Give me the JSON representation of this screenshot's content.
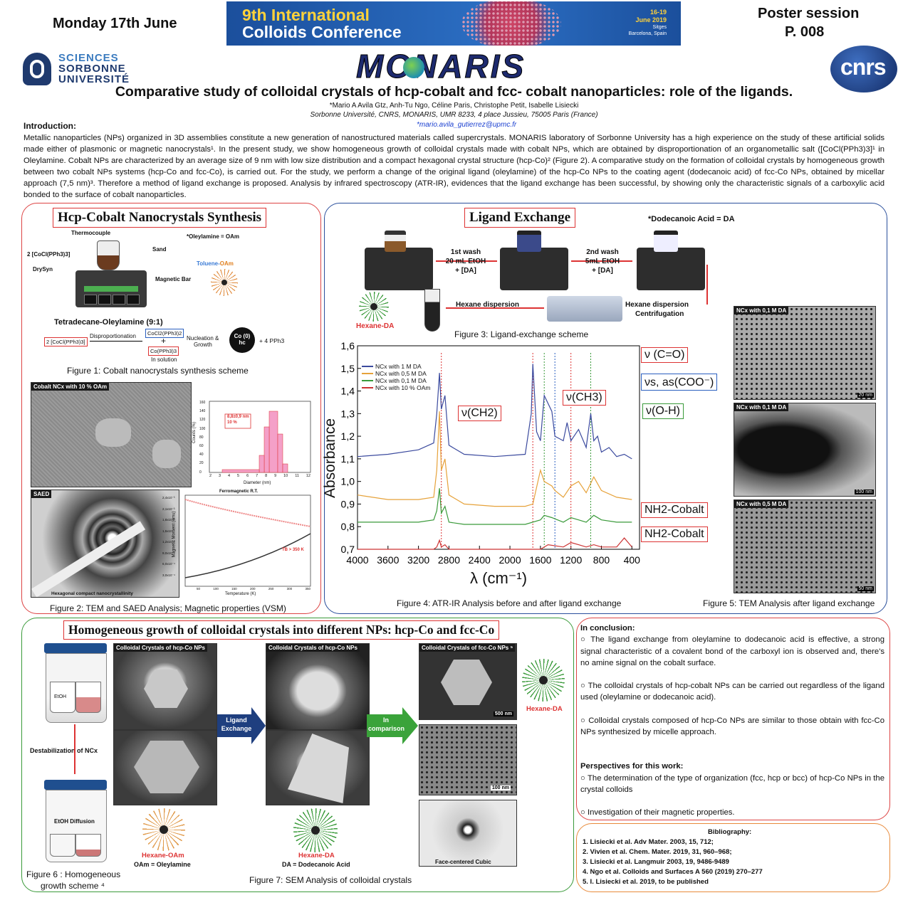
{
  "header": {
    "date": "Monday 17th June",
    "banner_line1": "9th International",
    "banner_line2": "Colloids Conference",
    "banner_dates": "16-19",
    "banner_month": "June 2019",
    "banner_place1": "Sitges",
    "banner_place2": "Barcelona, Spain",
    "session": "Poster session",
    "poster_number": "P. 008",
    "logo_sorbonne": [
      "SCIENCES",
      "SORBONNE",
      "UNIVERSITÉ"
    ],
    "logo_monaris": "MONARIS",
    "logo_cnrs": "cnrs"
  },
  "title": "Comparative study of colloidal crystals of hcp-cobalt and fcc- cobalt nanoparticles: role of the ligands.",
  "authors": "*Mario A Avila Gtz, Anh-Tu Ngo, Céline Paris, Christophe Petit, Isabelle Lisiecki",
  "affiliation": "Sorbonne Université, CNRS, MONARIS, UMR 8233, 4 place Jussieu, 75005 Paris (France)",
  "email": "*mario.avila_gutierrez@upmc.fr",
  "introduction": {
    "heading": "Introduction:",
    "text": "Metallic nanoparticles (NPs) organized in 3D assemblies constitute a new generation of nanostructured materials called supercrystals. MONARIS laboratory of Sorbonne University has a high experience on the study of these artificial solids made either of plasmonic or magnetic nanocrystals¹. In the present study, we show homogeneous growth of colloidal crystals made with cobalt NPs, which are obtained by disproportionation of an organometallic salt ([CoCl(PPh3)3]¹ in Oleylamine. Cobalt NPs are characterized by an average size of 9 nm with low size distribution and a compact hexagonal crystal structure (hcp-Co)² (Figure 2). A comparative study on the formation of colloidal crystals by homogeneous growth between two cobalt NPs systems (hcp-Co and fcc-Co), is carried out. For the study, we perform a change of the original ligand (oleylamine) of the hcp-Co NPs to the coating agent (dodecanoic acid) of fcc-Co NPs, obtained by micellar approach (7,5 nm)³. Therefore a method of ligand exchange is proposed. Analysis by infrared spectroscopy (ATR-IR), evidences that the ligand exchange has been successful, by showing only the characteristic signals of a carboxylic acid bonded to the surface of cobalt nanoparticles."
  },
  "synthesis": {
    "title": "Hcp-Cobalt Nanocrystals Synthesis",
    "labels": {
      "thermocouple": "Thermocouple",
      "oam_def": "*Oleylamine = OAm",
      "precursor": "2 [CoCl(PPh3)3]",
      "sand": "Sand",
      "drysyn": "DrySyn",
      "toluene": "Toluene-",
      "toluene_oam": "OAm",
      "magnetic_bar": "Magnetic Bar",
      "solvent": "Tetradecane-Oleylamine (9:1)",
      "reactant": "2 [CoCl(PPh3)3]",
      "disprop": "Disproportionation",
      "cocl": "CoCl2(PPh3)2",
      "plus": "+",
      "co_pph": "Co(PPh3)3",
      "in_solution": "In solution",
      "nucleation": "Nucleation &",
      "growth": "Growth",
      "co0": "Co (0)",
      "hc": "hc",
      "pph3": "+ 4 PPh3"
    },
    "fig1_caption": "Figure 1: Cobalt nanocrystals synthesis scheme",
    "tem_label": "Cobalt NCx with 10 % OAm",
    "hist": {
      "annot1": "8,8±0,9 nm",
      "annot2": "10 %",
      "xlabel": "Diameter (nm)",
      "ylabel": "Counts (%)",
      "yticks": [
        "160",
        "140",
        "120",
        "100",
        "80",
        "60",
        "40",
        "20",
        "0"
      ],
      "xticks": [
        "2",
        "3",
        "4",
        "5",
        "6",
        "7",
        "8",
        "9",
        "10",
        "11",
        "12"
      ]
    },
    "saed_label": "SAED",
    "saed_caption": "Hexagonal compact nanocrystallinity",
    "vsm": {
      "title": "Ferromagnetic R.T.",
      "ylabel": "Magnetic Moment (emu)",
      "xlabel": "Temperature (K)",
      "annot": "TB > 350 K",
      "yticks": [
        "2,4x10⁻³",
        "2,1x10⁻³",
        "1,8x10⁻³",
        "1,5x10⁻³",
        "1,2x10⁻³",
        "9,0x10⁻⁴",
        "6,0x10⁻⁴",
        "3,0x10⁻⁴"
      ],
      "xticks": [
        "50",
        "100",
        "150",
        "200",
        "250",
        "300",
        "350"
      ]
    },
    "fig2_caption": "Figure 2: TEM and SAED Analysis; Magnetic properties (VSM)"
  },
  "ligand": {
    "title": "Ligand Exchange",
    "da_def": "*Dodecanoic Acid = DA",
    "wash1": [
      "1st wash",
      "20 mL EtOH",
      "+ [DA]"
    ],
    "wash2": [
      "2nd wash",
      "5mL EtOH",
      "+ [DA]"
    ],
    "hexane_disp": "Hexane dispersion",
    "hexane_disp2": "Hexane dispersion",
    "centrifugation": "Centrifugation",
    "hexane_da": "Hexane-DA",
    "fig3_caption": "Figure 3: Ligand-exchange scheme",
    "fig4_caption": "Figure 4: ATR-IR Analysis before and after ligand exchange",
    "fig5_caption": "Figure 5: TEM Analysis after ligand exchange",
    "tem_labels": [
      "NCx with 0,1 M DA",
      "NCx with 0,1 M DA",
      "NCx with 0,5 M DA"
    ],
    "scalebars": [
      "20 nm",
      "100 nm",
      "50 nm"
    ],
    "ir_labels": {
      "ch2": "ν(CH2)",
      "ch3": "ν(CH3)",
      "co": "ν (C=O)",
      "coo": "νs, as(COO⁻)",
      "oh": "ν(O-H)",
      "nh2a": "NH2-Cobalt",
      "nh2b": "NH2-Cobalt"
    }
  },
  "chart_data": {
    "type": "line",
    "title": "",
    "xlabel": "λ (cm⁻¹)",
    "ylabel": "Absorbance",
    "xlim": [
      4000,
      300
    ],
    "ylim": [
      0.7,
      1.6
    ],
    "xticks": [
      4000,
      3600,
      3200,
      2800,
      2400,
      2000,
      1600,
      1200,
      800,
      400
    ],
    "yticks": [
      "0,7",
      "0,8",
      "0,9",
      "1,0",
      "1,1",
      "1,2",
      "1,3",
      "1,4",
      "1,5",
      "1,6"
    ],
    "legend_position": "top-left",
    "series": [
      {
        "name": "NCx with 1 M DA",
        "color": "#3b4a9e",
        "x": [
          4000,
          3600,
          3200,
          3000,
          2960,
          2925,
          2900,
          2853,
          2800,
          2600,
          2200,
          1800,
          1720,
          1700,
          1650,
          1600,
          1550,
          1450,
          1410,
          1300,
          1250,
          1200,
          1100,
          1000,
          940,
          900,
          850,
          800,
          700,
          600,
          500,
          400
        ],
        "y": [
          1.11,
          1.12,
          1.14,
          1.17,
          1.3,
          1.48,
          1.32,
          1.38,
          1.16,
          1.12,
          1.11,
          1.12,
          1.3,
          1.52,
          1.22,
          1.18,
          1.38,
          1.31,
          1.2,
          1.18,
          1.26,
          1.18,
          1.23,
          1.15,
          1.3,
          1.18,
          1.2,
          1.13,
          1.15,
          1.11,
          1.12,
          1.1
        ]
      },
      {
        "name": "NCx with 0,5 M DA",
        "color": "#e6a23a",
        "x": [
          4000,
          3600,
          3200,
          3000,
          2960,
          2925,
          2900,
          2853,
          2800,
          2600,
          2200,
          1800,
          1700,
          1600,
          1550,
          1450,
          1410,
          1300,
          1200,
          1100,
          1000,
          900,
          800,
          600,
          400
        ],
        "y": [
          0.94,
          0.92,
          0.92,
          0.93,
          1.05,
          1.31,
          1.05,
          1.1,
          0.94,
          0.9,
          0.89,
          0.89,
          0.9,
          1.05,
          1.0,
          0.98,
          0.96,
          0.93,
          0.98,
          1.0,
          0.95,
          1.02,
          0.96,
          0.93,
          0.92
        ]
      },
      {
        "name": "NCx with 0,1 M DA",
        "color": "#3a9a3a",
        "x": [
          4000,
          3600,
          3200,
          3000,
          2960,
          2925,
          2900,
          2853,
          2800,
          2600,
          2200,
          1800,
          1600,
          1550,
          1450,
          1300,
          1200,
          1100,
          1000,
          900,
          800,
          600,
          400
        ],
        "y": [
          0.82,
          0.82,
          0.82,
          0.83,
          0.87,
          0.97,
          0.86,
          0.89,
          0.82,
          0.81,
          0.81,
          0.81,
          0.83,
          0.85,
          0.84,
          0.82,
          0.84,
          0.83,
          0.82,
          0.85,
          0.83,
          0.82,
          0.82
        ]
      },
      {
        "name": "NCx with 10 % OAm",
        "color": "#cc3333",
        "x": [
          4000,
          3600,
          3200,
          3000,
          2960,
          2925,
          2900,
          2853,
          2800,
          2600,
          2200,
          1800,
          1600,
          1500,
          1300,
          1200,
          1100,
          1000,
          900,
          800,
          600,
          500,
          400
        ],
        "y": [
          0.7,
          0.7,
          0.7,
          0.7,
          0.71,
          0.74,
          0.71,
          0.72,
          0.7,
          0.7,
          0.7,
          0.7,
          0.7,
          0.72,
          0.71,
          0.73,
          0.72,
          0.71,
          0.72,
          0.71,
          0.71,
          0.75,
          0.71
        ]
      }
    ]
  },
  "growth": {
    "title": "Homogeneous growth of colloidal crystals into different NPs: hcp-Co and fcc-Co",
    "etoh": "EtOH",
    "destab": "Destabilization of NCx",
    "diffusion": "EtOH Diffusion",
    "fig6_caption_1": "Figure 6 : Homogeneous",
    "fig6_caption_2": "growth scheme ⁴",
    "sem_headers": [
      "Colloidal Crystals of hcp-Co NPs",
      "Colloidal Crystals of  hcp-Co NPs",
      "Colloidal Crystals of fcc-Co NPs ⁵"
    ],
    "arrow1": [
      "Ligand",
      "Exchange"
    ],
    "arrow2": [
      "In",
      "comparison"
    ],
    "scale_500": "500 nm",
    "scale_100": "100 nm",
    "fcc": "Face-centered Cubic",
    "hexane_oam": "Hexane-OAm",
    "oam_def": "OAm = Oleylamine",
    "hexane_da": "Hexane-DA",
    "da_def": "DA = Dodecanoic Acid",
    "hexane_da_right": "Hexane-DA",
    "fig7_caption": "Figure 7: SEM Analysis of colloidal crystals"
  },
  "conclusion": {
    "heading": "In conclusion:",
    "items": [
      "The ligand exchange from oleylamine to dodecanoic acid is effective, a strong signal characteristic of a covalent bond of the carboxyl ion is observed and, there's no amine signal on the cobalt surface.",
      "The colloidal crystals of hcp-cobalt NPs can be carried out regardless of the ligand used (oleylamine or dodecanoic acid).",
      "Colloidal crystals composed of hcp-Co NPs are similar to those obtain with fcc-Co NPs synthesized by micelle approach."
    ],
    "persp_heading": "Perspectives for this work:",
    "persp_items": [
      "The determination of the type of organization (fcc, hcp or bcc) of hcp-Co NPs in the crystal colloids",
      "Investigation of their magnetic properties."
    ]
  },
  "bibliography": {
    "heading": "Bibliography:",
    "items": [
      "1.   Lisiecki et al. Adv Mater. 2003, 15, 712;",
      "2.   Vivien et al. Chem. Mater. 2019, 31, 960–968;",
      "3.   Lisiecki et al. Langmuir 2003, 19, 9486-9489",
      "4.   Ngo et al. Colloids and Surfaces A 560 (2019) 270–277",
      "5.   I. Lisiecki et al. 2019, to be published"
    ]
  }
}
